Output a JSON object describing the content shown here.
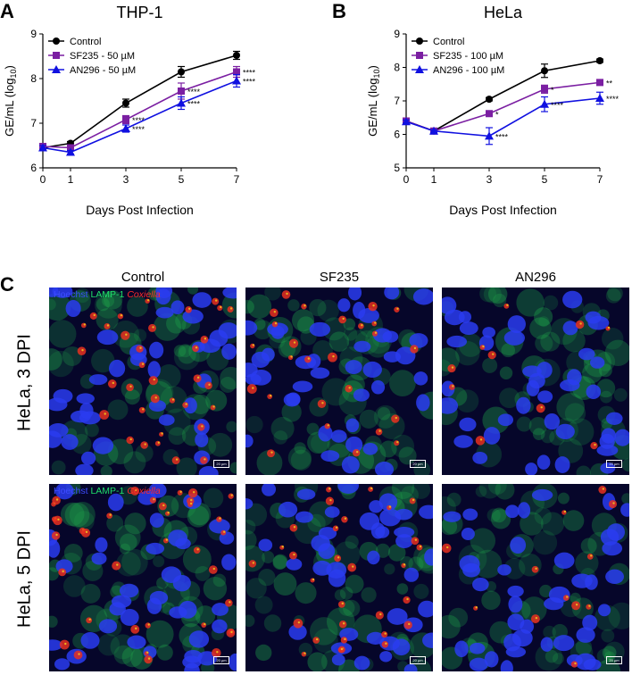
{
  "panels": {
    "A": "A",
    "B": "B",
    "C": "C"
  },
  "chart_data": [
    {
      "type": "line",
      "title": "THP-1",
      "xlabel": "Days Post Infection",
      "ylabel": "GE/mL (log10)",
      "ylabel_main": "GE/mL (log",
      "ylabel_sub": "10",
      "ylabel_close": ")",
      "x": [
        0,
        1,
        3,
        5,
        7
      ],
      "xlim": [
        0,
        7
      ],
      "ylim": [
        6,
        9
      ],
      "yticks": [
        6,
        7,
        8,
        9
      ],
      "legend_position": "top-left",
      "series": [
        {
          "name": "Control",
          "color": "#000000",
          "marker": "circle",
          "values": [
            6.45,
            6.55,
            7.45,
            8.15,
            8.52
          ],
          "errors": [
            0.05,
            0.04,
            0.09,
            0.12,
            0.09
          ],
          "annotations": [
            "",
            "",
            "",
            "",
            ""
          ]
        },
        {
          "name": "SF235 - 50 µM",
          "color": "#7b1fa2",
          "marker": "square",
          "values": [
            6.48,
            6.45,
            7.08,
            7.72,
            8.15
          ],
          "errors": [
            0.05,
            0.04,
            0.09,
            0.18,
            0.12
          ],
          "annotations": [
            "",
            "",
            "****",
            "****",
            "****"
          ]
        },
        {
          "name": "AN296 - 50 µM",
          "color": "#1010e0",
          "marker": "triangle",
          "values": [
            6.45,
            6.35,
            6.88,
            7.45,
            7.95
          ],
          "errors": [
            0.05,
            0.04,
            0.08,
            0.14,
            0.14
          ],
          "annotations": [
            "",
            "",
            "****",
            "****",
            "****"
          ]
        }
      ]
    },
    {
      "type": "line",
      "title": "HeLa",
      "xlabel": "Days Post Infection",
      "ylabel": "GE/mL (log10)",
      "ylabel_main": "GE/mL (log",
      "ylabel_sub": "10",
      "ylabel_close": ")",
      "x": [
        0,
        1,
        3,
        5,
        7
      ],
      "xlim": [
        0,
        7
      ],
      "ylim": [
        5,
        9
      ],
      "yticks": [
        5,
        6,
        7,
        8,
        9
      ],
      "legend_position": "top-left",
      "series": [
        {
          "name": "Control",
          "color": "#000000",
          "marker": "circle",
          "values": [
            6.4,
            6.1,
            7.05,
            7.9,
            8.2
          ],
          "errors": [
            0.05,
            0.04,
            0.05,
            0.2,
            0.05
          ],
          "annotations": [
            "",
            "",
            "",
            "",
            ""
          ]
        },
        {
          "name": "SF235 - 100 µM",
          "color": "#7b1fa2",
          "marker": "square",
          "values": [
            6.4,
            6.1,
            6.62,
            7.35,
            7.55
          ],
          "errors": [
            0.05,
            0.04,
            0.05,
            0.12,
            0.06
          ],
          "annotations": [
            "",
            "",
            "*",
            "*",
            "**"
          ]
        },
        {
          "name": "AN296 - 100 µM",
          "color": "#1010e0",
          "marker": "triangle",
          "values": [
            6.38,
            6.1,
            5.95,
            6.9,
            7.08
          ],
          "errors": [
            0.05,
            0.04,
            0.25,
            0.22,
            0.18
          ],
          "annotations": [
            "",
            "",
            "****",
            "****",
            "****"
          ]
        }
      ]
    }
  ],
  "micrographs": {
    "columns": [
      "Control",
      "SF235",
      "AN296"
    ],
    "rows": [
      "HeLa, 3 DPI",
      "HeLa, 5 DPI"
    ],
    "stain_legend": {
      "hoechst": "Hoechst",
      "lamp": "LAMP-1",
      "coxiella": "Coxiella"
    },
    "scale_bar": "20 µm",
    "colors": {
      "nuclei": "#2a3cf0",
      "lamp": "#1fa84a",
      "coxiella": "#e83020",
      "background": "#06062a"
    }
  }
}
